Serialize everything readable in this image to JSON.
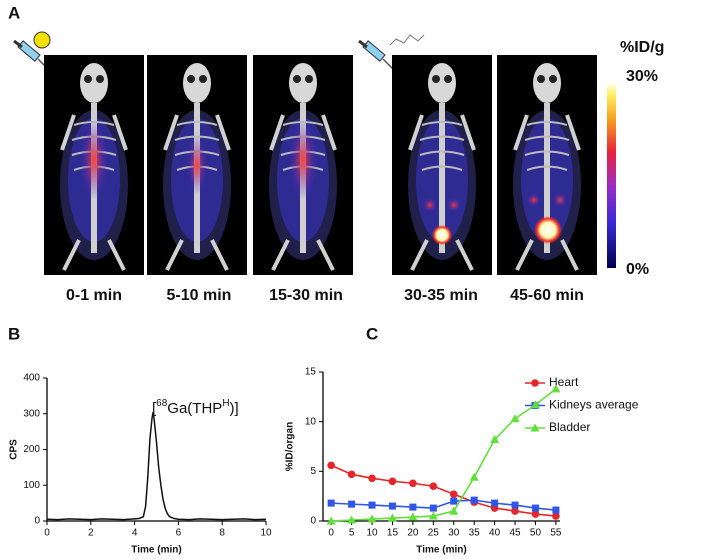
{
  "panel_a": {
    "label": "A",
    "time_labels": [
      "0-1 min",
      "5-10 min",
      "15-30 min",
      "30-35 min",
      "45-60 min"
    ],
    "colorbar": {
      "title": "%ID/g",
      "max_label": "30%",
      "min_label": "0%"
    }
  },
  "chart_data": [
    {
      "type": "line",
      "panel_label": "B",
      "annotation": [
        {
          "text": "[",
          "sup": false
        },
        {
          "text": "68",
          "sup": true
        },
        {
          "text": "Ga(THP",
          "sup": false
        },
        {
          "text": "H",
          "sup": true
        },
        {
          "text": ")]",
          "sup": false
        }
      ],
      "x_label": "Time (min)",
      "y_label": "CPS",
      "color": "#111111",
      "x": [
        0,
        0.5,
        1,
        1.5,
        2,
        2.5,
        3,
        3.5,
        4,
        4.2,
        4.4,
        4.5,
        4.6,
        4.7,
        4.8,
        4.85,
        4.9,
        5.0,
        5.1,
        5.2,
        5.3,
        5.4,
        5.5,
        5.6,
        5.8,
        6,
        6.5,
        7,
        7.5,
        8,
        8.5,
        9,
        9.5,
        10
      ],
      "values": [
        5,
        4,
        6,
        5,
        4,
        6,
        5,
        4,
        6,
        7,
        12,
        40,
        120,
        230,
        290,
        305,
        280,
        220,
        150,
        100,
        60,
        35,
        20,
        12,
        7,
        5,
        4,
        6,
        5,
        4,
        5,
        6,
        4,
        5
      ],
      "xlim": [
        0,
        10
      ],
      "xticks": [
        0,
        2,
        4,
        6,
        8,
        10
      ],
      "ylim": [
        0,
        400
      ],
      "yticks": [
        0,
        100,
        200,
        300,
        400
      ]
    },
    {
      "type": "line",
      "panel_label": "C",
      "x_label": "Time (min)",
      "y_label": "%ID/organ",
      "legend": "right",
      "x": [
        0,
        5,
        10,
        15,
        20,
        25,
        30,
        35,
        40,
        45,
        50,
        55
      ],
      "series": [
        {
          "name": "Heart",
          "color": "#e8262a",
          "marker": "circle",
          "values": [
            5.6,
            4.7,
            4.3,
            4.0,
            3.8,
            3.5,
            2.7,
            1.9,
            1.3,
            1.0,
            0.7,
            0.5
          ]
        },
        {
          "name": "Kidneys average",
          "color": "#2f56e6",
          "marker": "square",
          "values": [
            1.8,
            1.7,
            1.6,
            1.5,
            1.4,
            1.3,
            2.0,
            2.1,
            1.8,
            1.6,
            1.3,
            1.1
          ]
        },
        {
          "name": "Bladder",
          "color": "#62e03a",
          "marker": "triangle",
          "values": [
            0,
            0.1,
            0.2,
            0.3,
            0.4,
            0.5,
            1.0,
            4.4,
            8.2,
            10.3,
            11.7,
            13.3
          ]
        }
      ],
      "xlim": [
        -2,
        56
      ],
      "xticks": [
        0,
        5,
        10,
        15,
        20,
        25,
        30,
        35,
        40,
        45,
        50,
        55
      ],
      "ylim": [
        0,
        15
      ],
      "yticks": [
        0,
        5,
        10,
        15
      ]
    }
  ]
}
